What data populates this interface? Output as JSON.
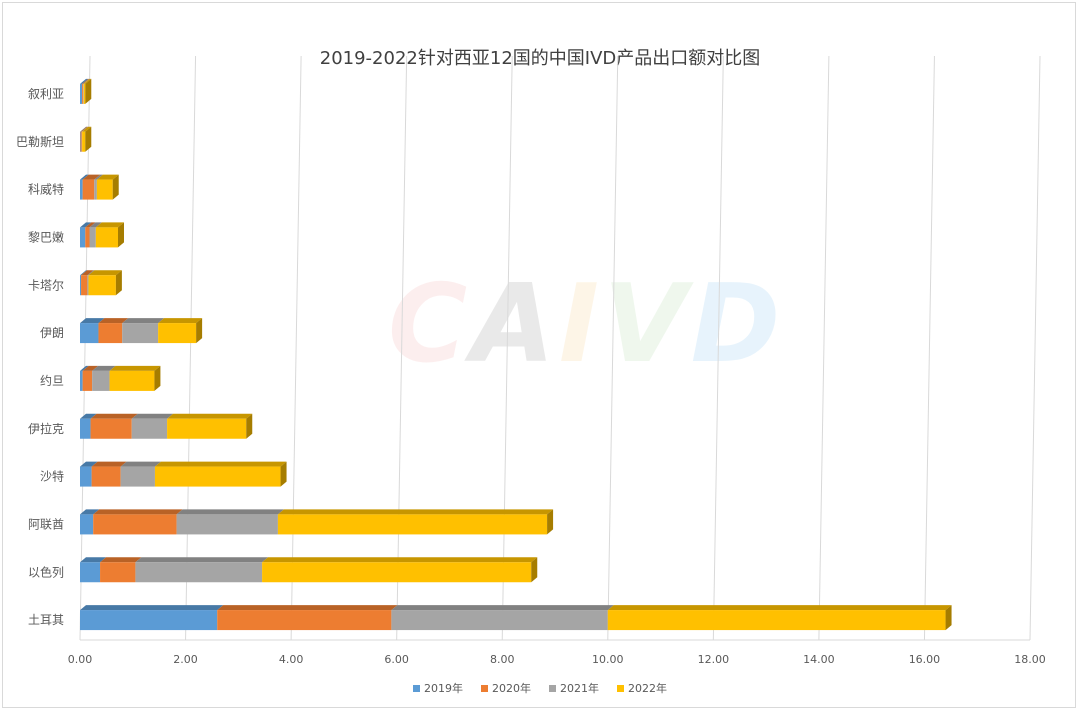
{
  "watermark": [
    "C",
    "A",
    "I",
    "V",
    "D"
  ],
  "watermark_colors": [
    "#f4a6a6",
    "#8c8c8c",
    "#f7c97e",
    "#a8d8a0",
    "#7ec3f0"
  ],
  "chart_data": {
    "type": "bar",
    "orientation": "horizontal",
    "stacked": true,
    "title": "2019-2022针对西亚12国的中国IVD产品出口额对比图",
    "categories": [
      "土耳其",
      "以色列",
      "阿联酋",
      "沙特",
      "伊拉克",
      "约旦",
      "伊朗",
      "卡塔尔",
      "黎巴嫩",
      "科威特",
      "巴勒斯坦",
      "叙利亚"
    ],
    "series": [
      {
        "name": "2019年",
        "color": "#5b9bd5",
        "values": [
          2.6,
          0.38,
          0.25,
          0.22,
          0.2,
          0.05,
          0.35,
          0.02,
          0.1,
          0.05,
          0.01,
          0.04
        ]
      },
      {
        "name": "2020年",
        "color": "#ed7d31",
        "values": [
          3.3,
          0.67,
          1.58,
          0.55,
          0.78,
          0.18,
          0.45,
          0.12,
          0.08,
          0.22,
          0.02,
          0.02
        ]
      },
      {
        "name": "2021年",
        "color": "#a5a5a5",
        "values": [
          4.1,
          2.4,
          1.92,
          0.65,
          0.67,
          0.33,
          0.68,
          0.02,
          0.12,
          0.05,
          0.01,
          0.01
        ]
      },
      {
        "name": "2022年",
        "color": "#ffc000",
        "values": [
          6.4,
          5.1,
          5.1,
          2.38,
          1.5,
          0.85,
          0.72,
          0.52,
          0.42,
          0.3,
          0.06,
          0.03
        ]
      }
    ],
    "xlim": [
      0,
      18
    ],
    "xticks": [
      "0.00",
      "2.00",
      "4.00",
      "6.00",
      "8.00",
      "10.00",
      "12.00",
      "14.00",
      "16.00",
      "18.00"
    ],
    "grid": true,
    "legend_position": "bottom"
  }
}
